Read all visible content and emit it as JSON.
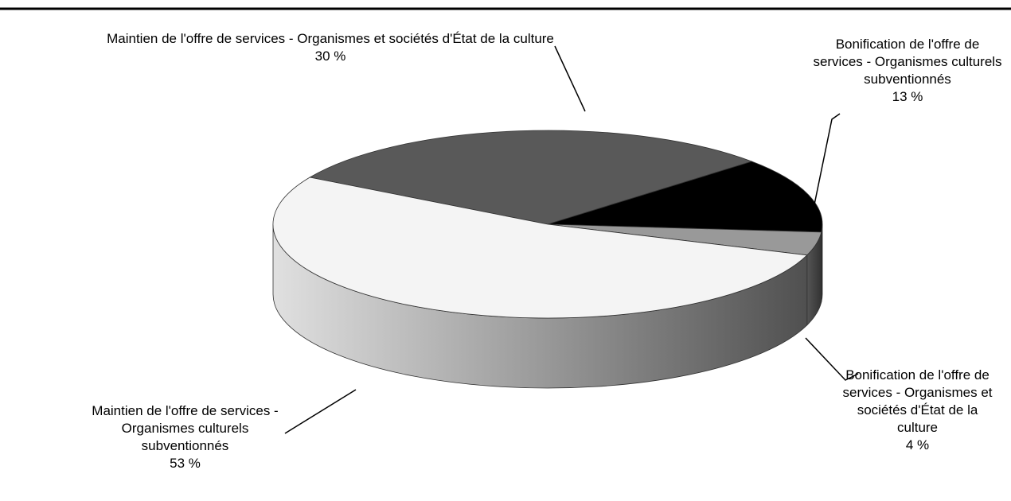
{
  "chart_data": {
    "type": "pie",
    "categories": [
      "Maintien de l'offre de services - Organismes et sociétés d'État de la culture",
      "Bonification de l'offre de services - Organismes culturels subventionnés",
      "Bonification de l'offre de services - Organismes et sociétés d'État de la culture",
      "Maintien de l'offre de services - Organismes culturels subventionnés"
    ],
    "values": [
      30,
      13,
      4,
      53
    ],
    "value_labels": [
      "30 %",
      "13 %",
      "4 %",
      "53 %"
    ],
    "colors": [
      "#595959",
      "#000000",
      "#999999",
      "#f4f4f4"
    ]
  }
}
